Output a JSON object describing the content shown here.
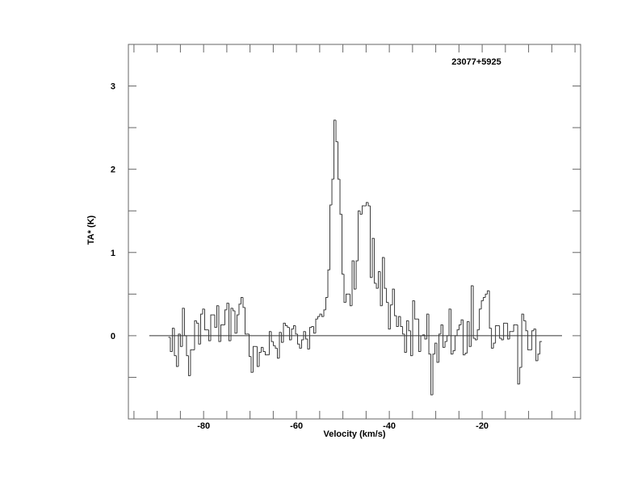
{
  "chart_data": {
    "type": "line",
    "style": "step",
    "title": "23077+5925",
    "xlabel": "Velocity (km/s)",
    "ylabel": "TA* (K)",
    "xlim": [
      -96.2,
      1.2
    ],
    "ylim": [
      -1.0,
      3.5
    ],
    "x_major_ticks": [
      -80,
      -60,
      -40,
      -20
    ],
    "x_tick_labels": [
      "-80",
      "-60",
      "-40",
      "-20"
    ],
    "x_minor_step": 5,
    "y_major_ticks": [
      0,
      1,
      2,
      3
    ],
    "y_tick_labels": [
      "0",
      "1",
      "2",
      "3"
    ],
    "y_minor_step": 0.5,
    "grid": false,
    "legend": "none",
    "baseline": {
      "x": [
        -91.7,
        -2.8
      ],
      "y": 0
    },
    "series": [
      {
        "velocity_start": -87.6,
        "channel_width": 0.435,
        "values": [
          -0.02,
          -0.19,
          0.09,
          -0.24,
          -0.37,
          0.02,
          -0.13,
          0.33,
          0,
          -0.24,
          -0.48,
          -0.17,
          -0.17,
          0.18,
          0.15,
          -0.1,
          0.26,
          0.32,
          0.07,
          0.07,
          -0.06,
          0.25,
          0.25,
          0.1,
          0.36,
          -0.07,
          0.13,
          0.13,
          0.31,
          0.39,
          -0.06,
          0.33,
          0.3,
          0.03,
          0.25,
          0.38,
          0.46,
          0.34,
          0.02,
          0.02,
          -0.25,
          -0.44,
          -0.13,
          -0.13,
          -0.37,
          -0.2,
          -0.14,
          -0.19,
          -0.23,
          -0.23,
          0.05,
          -0.07,
          -0.12,
          -0.15,
          -0.27,
          0.04,
          -0.08,
          0.15,
          0.12,
          0.1,
          -0.05,
          0.08,
          0.12,
          0.02,
          -0.1,
          -0.15,
          -0.05,
          0.05,
          -0.04,
          -0.16,
          0.1,
          0.11,
          0.03,
          0.2,
          0.23,
          0.26,
          0.23,
          0.31,
          0.46,
          0.79,
          1.57,
          1.88,
          2.59,
          2.33,
          1.88,
          1.46,
          0.74,
          0.4,
          0.5,
          0.5,
          0.36,
          0.9,
          0.56,
          0.9,
          1.5,
          1.46,
          1.56,
          1.56,
          1.6,
          1.56,
          0.7,
          1.17,
          0.63,
          0.57,
          0.77,
          0.36,
          0.94,
          0.57,
          0.4,
          0.08,
          0.37,
          0.56,
          0.24,
          0.11,
          0.23,
          0.11,
          0.02,
          -0.2,
          0.18,
          0.06,
          -0.24,
          0.42,
          0.2,
          0.2,
          -0.19,
          0,
          0.01,
          -0.04,
          0.26,
          -0.22,
          -0.71,
          -0.22,
          -0.09,
          -0.32,
          0.02,
          0.13,
          -0.14,
          -0.07,
          0,
          0.32,
          -0.22,
          -0.18,
          0,
          0.07,
          0.13,
          0.19,
          -0.23,
          -0.21,
          0.17,
          -0.13,
          0.6,
          -0.03,
          -0.05,
          0.07,
          0.32,
          0.42,
          0.46,
          0.5,
          0.54,
          0.09,
          -0.15,
          -0.09,
          0.12,
          0.12,
          -0.03,
          -0.05,
          0.15,
          0.15,
          -0.04,
          0.05,
          0.05,
          0.13,
          0.13,
          -0.58,
          -0.38,
          0.26,
          0.18,
          0.06,
          -0.17,
          -0.17,
          0.06,
          0.08,
          -0.3,
          -0.22,
          -0.07
        ]
      }
    ],
    "colors": {
      "line": "#3a3a3a",
      "frame": "#666666"
    }
  }
}
